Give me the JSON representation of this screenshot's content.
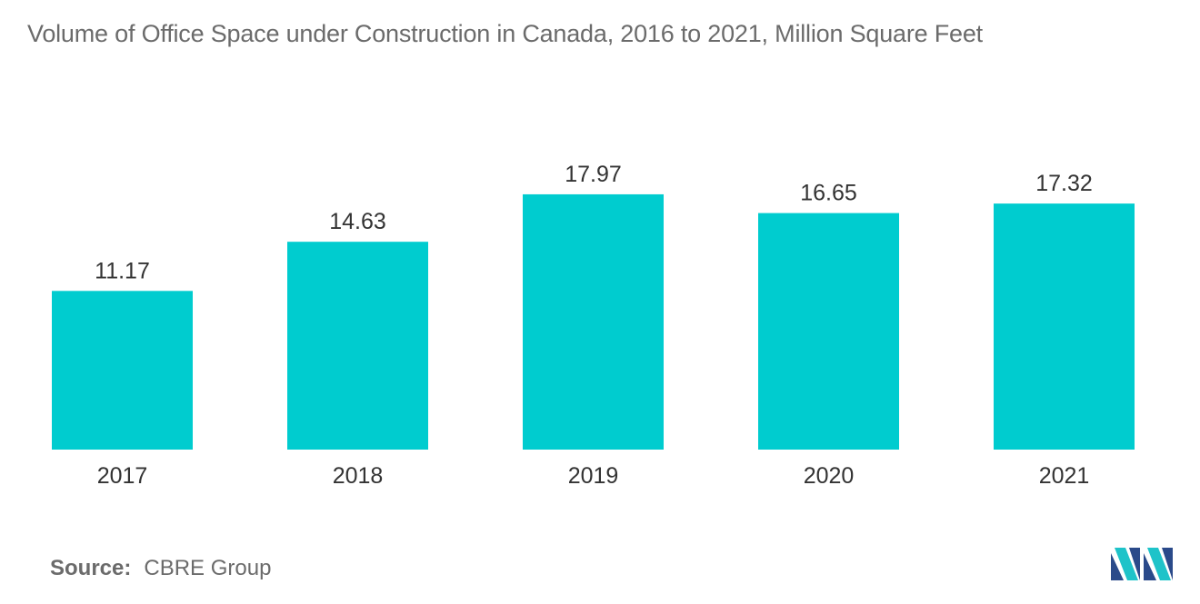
{
  "chart_data": {
    "type": "bar",
    "title": "Volume of Office Space under Construction in Canada, 2016 to 2021, Million Square Feet",
    "categories": [
      "2017",
      "2018",
      "2019",
      "2020",
      "2021"
    ],
    "values": [
      11.17,
      14.63,
      17.97,
      16.65,
      17.32
    ],
    "value_labels": [
      "11.17",
      "14.63",
      "17.97",
      "16.65",
      "17.32"
    ],
    "xlabel": "",
    "ylabel": "",
    "ylim": [
      0,
      20
    ],
    "grid": false,
    "legend": "none",
    "bar_color": "#00cccf"
  },
  "source": {
    "label": "Source:",
    "value": "CBRE Group"
  },
  "logo": {
    "icon": "mordor-intelligence-logo-icon",
    "colors": [
      "#2a4a8a",
      "#1ec3c9"
    ]
  }
}
